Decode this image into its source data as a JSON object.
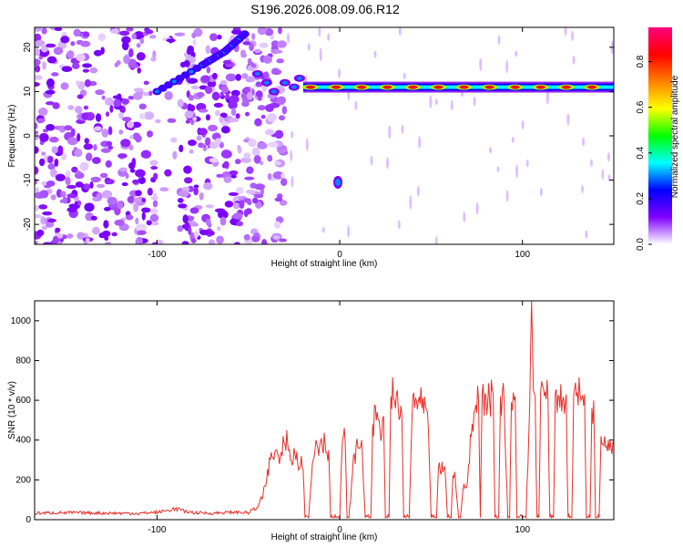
{
  "title": "S196.2026.008.09.06.R12",
  "chart_data": [
    {
      "type": "heatmap",
      "xlabel": "Height of straight line (km)",
      "ylabel": "Frequency (Hz)",
      "xlim": [
        -167,
        150
      ],
      "ylim": [
        -24.5,
        24.5
      ],
      "xticks": [
        -100,
        0,
        100
      ],
      "yticks": [
        -20,
        -10,
        0,
        10,
        20
      ],
      "colorbar": {
        "label": "Normalized spectral amplitude",
        "range": [
          0,
          0.95
        ],
        "ticks": [
          "0.0",
          "0.2",
          "0.4",
          "0.6",
          "0.8"
        ],
        "colormap": [
          "#ffffff",
          "#8000ff",
          "#0000ff",
          "#00ffff",
          "#00ff00",
          "#ffff00",
          "#ff8000",
          "#ff0000",
          "#ff0080"
        ]
      },
      "features": [
        {
          "name": "rising trace",
          "points": [
            [
              -100,
              10
            ],
            [
              -75,
              16
            ],
            [
              -63,
              19
            ],
            [
              -52,
              23
            ]
          ],
          "amplitude": 0.3
        },
        {
          "name": "main line",
          "from": -20,
          "to": 150,
          "frequency": 11,
          "amplitude": 0.85
        },
        {
          "name": "isolated blob",
          "x": -1,
          "y": -10.5,
          "amplitude": 0.3
        }
      ]
    },
    {
      "type": "line",
      "xlabel": "Height of straight line (km)",
      "ylabel": "SNR (10 * v/v)",
      "xlim": [
        -167,
        150
      ],
      "ylim": [
        0,
        1100
      ],
      "xticks": [
        -100,
        0,
        100
      ],
      "yticks": [
        0,
        200,
        400,
        600,
        800,
        1000
      ],
      "color": "#e8302a",
      "x": [
        -167,
        -150,
        -130,
        -110,
        -100,
        -93,
        -90,
        -85,
        -80,
        -70,
        -60,
        -50,
        -45,
        -42,
        -40,
        -38,
        -35,
        -33,
        -31,
        -30,
        -29,
        -27,
        -25,
        -23,
        -21,
        -20,
        -19,
        -17,
        -15,
        -13,
        -12,
        -10,
        -8,
        -6,
        -5,
        -4,
        -3,
        -2,
        0,
        1,
        2,
        3,
        4,
        5,
        8,
        10,
        12,
        14,
        16,
        17,
        18,
        20,
        22,
        24,
        25,
        26,
        27,
        28,
        30,
        32,
        34,
        35,
        36,
        38,
        40,
        42,
        45,
        48,
        50,
        52,
        53,
        54,
        55,
        57,
        58,
        59,
        60,
        61,
        62,
        63,
        65,
        66,
        68,
        70,
        72,
        74,
        76,
        77,
        78,
        80,
        82,
        84,
        85,
        86,
        87,
        88,
        89,
        90,
        92,
        93,
        94,
        95,
        96,
        97,
        98,
        100,
        102,
        104,
        105,
        106,
        107,
        108,
        109,
        110,
        112,
        114,
        115,
        116,
        117,
        118,
        120,
        122,
        124,
        125,
        126,
        127,
        128,
        130,
        132,
        134,
        135,
        136,
        137,
        138,
        139,
        140,
        141,
        142,
        143,
        144,
        145,
        147,
        150
      ],
      "y": [
        25,
        28,
        26,
        24,
        30,
        40,
        55,
        35,
        28,
        25,
        30,
        28,
        60,
        120,
        200,
        300,
        350,
        280,
        420,
        380,
        450,
        300,
        360,
        280,
        320,
        250,
        10,
        10,
        280,
        400,
        360,
        410,
        380,
        350,
        10,
        10,
        10,
        10,
        5,
        300,
        420,
        380,
        10,
        10,
        330,
        360,
        400,
        10,
        10,
        10,
        480,
        500,
        460,
        520,
        10,
        10,
        10,
        620,
        600,
        560,
        520,
        10,
        10,
        10,
        620,
        600,
        560,
        540,
        10,
        10,
        10,
        260,
        240,
        260,
        200,
        10,
        10,
        10,
        220,
        240,
        10,
        10,
        180,
        200,
        420,
        550,
        600,
        10,
        640,
        620,
        600,
        640,
        10,
        10,
        10,
        620,
        640,
        600,
        10,
        10,
        590,
        640,
        620,
        10,
        10,
        10,
        10,
        580,
        1100,
        650,
        620,
        10,
        10,
        640,
        620,
        600,
        10,
        10,
        10,
        640,
        620,
        600,
        630,
        10,
        10,
        10,
        620,
        640,
        600,
        630,
        10,
        10,
        10,
        560,
        600,
        10,
        10,
        10,
        420,
        380,
        420,
        400,
        390
      ]
    }
  ]
}
